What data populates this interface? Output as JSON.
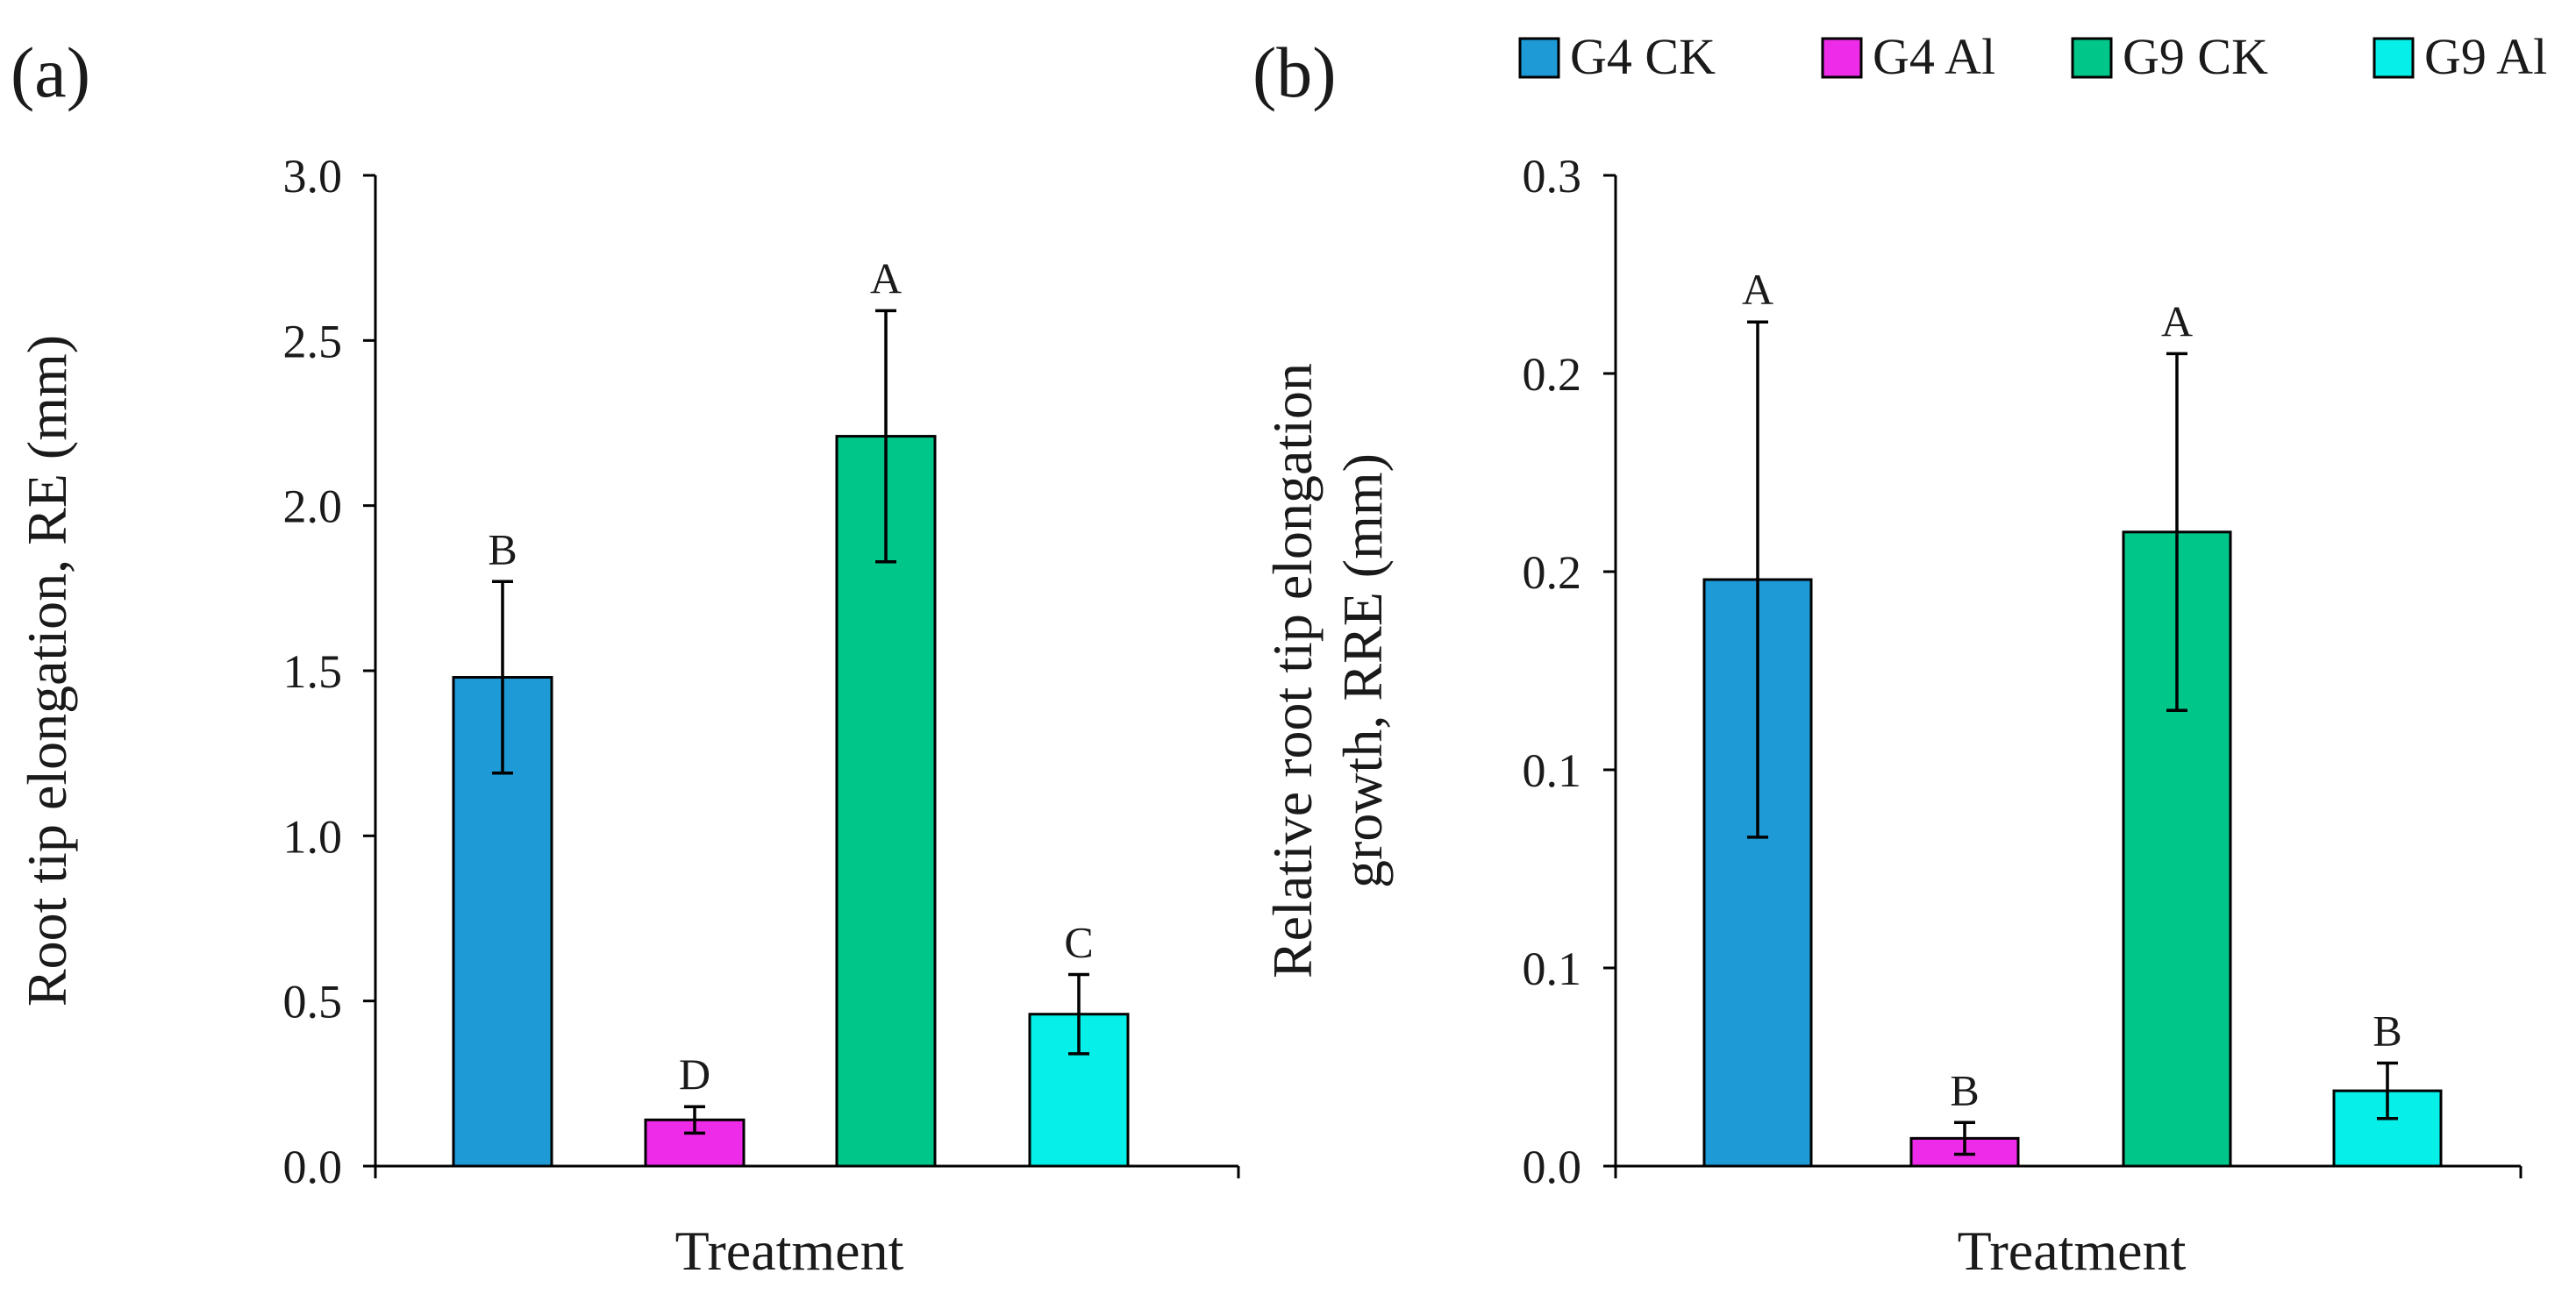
{
  "chart_data": [
    {
      "type": "bar",
      "panel_label": "(a)",
      "categories": [
        "G4 CK",
        "G4 Al",
        "G9 CK",
        "G9 Al"
      ],
      "values": [
        1.48,
        0.14,
        2.21,
        0.46
      ],
      "errors": [
        0.29,
        0.04,
        0.38,
        0.12
      ],
      "significance": [
        "B",
        "D",
        "A",
        "C"
      ],
      "xlabel": "Treatment",
      "ylabel": "Root tip elongation, RE (mm)",
      "ylim": [
        0,
        3.0
      ],
      "yticks": [
        "0.0",
        "0.5",
        "1.0",
        "1.5",
        "2.0",
        "2.5",
        "3.0"
      ],
      "colors": [
        "#1E9AD6",
        "#EE2BE9",
        "#00C68A",
        "#06EFE9"
      ]
    },
    {
      "type": "bar",
      "panel_label": "(b)",
      "categories": [
        "G4 CK",
        "G4 Al",
        "G9 CK",
        "G9 Al"
      ],
      "values": [
        0.148,
        0.007,
        0.16,
        0.019
      ],
      "errors": [
        0.065,
        0.004,
        0.045,
        0.007
      ],
      "significance": [
        "A",
        "B",
        "A",
        "B"
      ],
      "xlabel": "Treatment",
      "ylabel_lines": [
        "Relative root tip elongation",
        "growth, RRE (mm)"
      ],
      "ylim": [
        0,
        0.25
      ],
      "yticks": [
        "0.0",
        "0.1",
        "0.1",
        "0.2",
        "0.2",
        "0.3"
      ],
      "colors": [
        "#1E9AD6",
        "#EE2BE9",
        "#00C68A",
        "#06EFE9"
      ]
    }
  ],
  "legend": [
    {
      "label": "G4 CK",
      "color": "#1E9AD6"
    },
    {
      "label": "G4 Al",
      "color": "#EE2BE9"
    },
    {
      "label": "G9 CK",
      "color": "#00C68A"
    },
    {
      "label": "G9 Al",
      "color": "#06EFE9"
    }
  ]
}
